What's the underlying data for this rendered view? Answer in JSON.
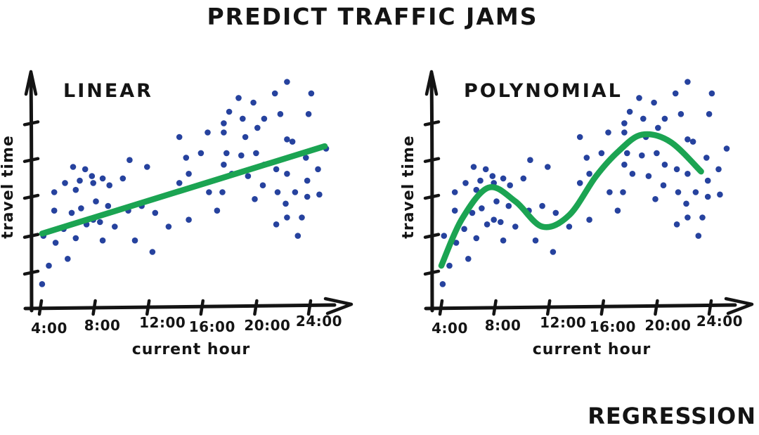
{
  "title": "PREDICT TRAFFIC JAMS",
  "footer": "REGRESSION",
  "colors": {
    "ink": "#141414",
    "point_blue": "#26429E",
    "fit_green": "#1BA452"
  },
  "chart_data": {
    "type": "scatter",
    "title": "PREDICT TRAFFIC JAMS",
    "xlabel": "current hour",
    "ylabel": "travel time",
    "grid": false,
    "legend": "none",
    "x_range": [
      3,
      25.5
    ],
    "y_range": [
      0,
      10.5
    ],
    "x_ticks": [
      {
        "hour": 4,
        "label": "4:00"
      },
      {
        "hour": 8,
        "label": "8:00"
      },
      {
        "hour": 12,
        "label": "12:00"
      },
      {
        "hour": 16,
        "label": "16:00"
      },
      {
        "hour": 20,
        "label": "20:00"
      },
      {
        "hour": 24,
        "label": "24:00"
      }
    ],
    "y_ticks_unlabeled": [
      1.5,
      3.1,
      4.8,
      6.4,
      8.0
    ],
    "points_note": "travel time in arbitrary units 0-10; same scatter shown in both panels",
    "points": [
      [
        4.1,
        1.0
      ],
      [
        4.2,
        3.1
      ],
      [
        4.6,
        1.8
      ],
      [
        5.0,
        5.0
      ],
      [
        5.0,
        4.2
      ],
      [
        5.1,
        2.8
      ],
      [
        5.7,
        3.4
      ],
      [
        5.8,
        5.4
      ],
      [
        6.0,
        2.1
      ],
      [
        6.3,
        4.1
      ],
      [
        6.4,
        6.1
      ],
      [
        6.6,
        5.1
      ],
      [
        6.6,
        3.0
      ],
      [
        6.9,
        5.5
      ],
      [
        7.0,
        4.3
      ],
      [
        7.3,
        6.0
      ],
      [
        7.4,
        3.6
      ],
      [
        7.8,
        5.7
      ],
      [
        7.9,
        5.4
      ],
      [
        7.9,
        3.8
      ],
      [
        8.1,
        4.6
      ],
      [
        8.4,
        3.7
      ],
      [
        8.6,
        5.6
      ],
      [
        8.6,
        2.9
      ],
      [
        9.0,
        4.4
      ],
      [
        9.1,
        5.3
      ],
      [
        9.5,
        3.5
      ],
      [
        10.1,
        5.6
      ],
      [
        10.5,
        4.2
      ],
      [
        10.6,
        6.4
      ],
      [
        11.0,
        2.9
      ],
      [
        11.5,
        4.4
      ],
      [
        11.9,
        6.1
      ],
      [
        12.3,
        2.4
      ],
      [
        12.5,
        4.1
      ],
      [
        13.5,
        3.5
      ],
      [
        14.3,
        7.4
      ],
      [
        14.3,
        5.4
      ],
      [
        14.8,
        6.5
      ],
      [
        15.0,
        5.8
      ],
      [
        15.0,
        3.8
      ],
      [
        15.9,
        6.7
      ],
      [
        16.4,
        7.6
      ],
      [
        16.5,
        5.0
      ],
      [
        17.1,
        4.2
      ],
      [
        17.5,
        5.0
      ],
      [
        17.6,
        8.0
      ],
      [
        17.6,
        7.6
      ],
      [
        17.6,
        6.2
      ],
      [
        17.8,
        6.7
      ],
      [
        18.0,
        8.5
      ],
      [
        18.2,
        5.8
      ],
      [
        18.7,
        9.1
      ],
      [
        18.9,
        6.6
      ],
      [
        19.0,
        8.2
      ],
      [
        19.2,
        7.4
      ],
      [
        19.4,
        5.7
      ],
      [
        19.8,
        8.9
      ],
      [
        19.9,
        4.7
      ],
      [
        20.0,
        6.7
      ],
      [
        20.1,
        7.8
      ],
      [
        20.5,
        5.3
      ],
      [
        20.6,
        8.2
      ],
      [
        20.6,
        6.2
      ],
      [
        21.4,
        9.3
      ],
      [
        21.5,
        6.0
      ],
      [
        21.5,
        3.6
      ],
      [
        21.6,
        5.0
      ],
      [
        21.8,
        8.4
      ],
      [
        22.2,
        4.5
      ],
      [
        22.3,
        9.8
      ],
      [
        22.3,
        7.3
      ],
      [
        22.7,
        7.2
      ],
      [
        22.3,
        5.8
      ],
      [
        22.3,
        3.9
      ],
      [
        22.9,
        5.0
      ],
      [
        23.1,
        3.1
      ],
      [
        23.4,
        3.9
      ],
      [
        23.7,
        6.5
      ],
      [
        23.8,
        4.8
      ],
      [
        23.8,
        5.5
      ],
      [
        23.9,
        8.4
      ],
      [
        24.1,
        9.3
      ],
      [
        24.6,
        6.0
      ],
      [
        24.7,
        4.9
      ],
      [
        25.2,
        6.9
      ]
    ],
    "panels": [
      {
        "name": "LINEAR",
        "fit": {
          "type": "line",
          "anchors": [
            [
              4.1,
              3.2
            ],
            [
              25.1,
              7.0
            ]
          ]
        }
      },
      {
        "name": "POLYNOMIAL",
        "fit": {
          "type": "curve",
          "anchors": [
            [
              4.0,
              1.8
            ],
            [
              5.5,
              3.8
            ],
            [
              7.5,
              5.2
            ],
            [
              9.5,
              4.6
            ],
            [
              11.5,
              3.5
            ],
            [
              13.5,
              4.0
            ],
            [
              15.5,
              5.7
            ],
            [
              17.2,
              6.8
            ],
            [
              18.9,
              7.5
            ],
            [
              21.0,
              7.2
            ],
            [
              23.3,
              5.9
            ]
          ]
        }
      }
    ]
  }
}
